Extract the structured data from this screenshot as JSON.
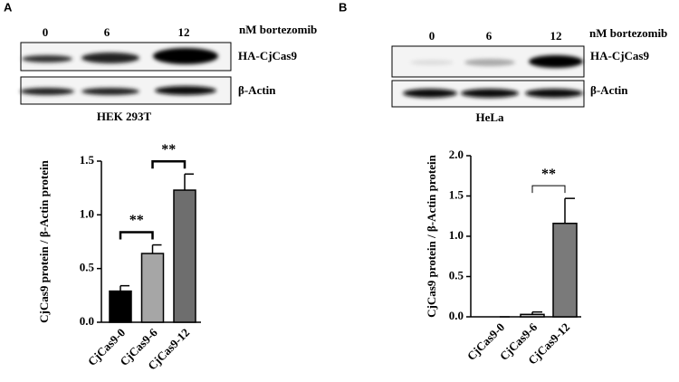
{
  "panels": [
    {
      "label": "A",
      "lanes": [
        "0",
        "6",
        "12"
      ],
      "unit": "nM bortezomib",
      "blots": [
        "HA-CjCas9",
        "β-Actin"
      ],
      "cell": "HEK 293T"
    },
    {
      "label": "B",
      "lanes": [
        "0",
        "6",
        "12"
      ],
      "unit": "nM bortezomib",
      "blots": [
        "HA-CjCas9",
        "β-Actin"
      ],
      "cell": "HeLa"
    }
  ],
  "chart_data": [
    {
      "type": "bar",
      "ylabel": "CjCas9 protein / β-Actin protein",
      "categories": [
        "CjCas9-0",
        "CjCas9-6",
        "CjCas9-12"
      ],
      "values": [
        0.29,
        0.64,
        1.23
      ],
      "errors": [
        0.05,
        0.08,
        0.15
      ],
      "colors": [
        "#000000",
        "#a6a6a6",
        "#6e6e6e"
      ],
      "ylim": [
        0,
        1.5
      ],
      "yticks": [
        {
          "value": 0,
          "label": "0.0"
        },
        0.5,
        {
          "value": 1,
          "label": "1.0"
        },
        1.5
      ],
      "annotations": [
        {
          "text": "**",
          "between": [
            "CjCas9-0",
            "CjCas9-6"
          ]
        },
        {
          "text": "**",
          "between": [
            "CjCas9-6",
            "CjCas9-12"
          ]
        }
      ]
    },
    {
      "type": "bar",
      "ylabel": "CjCas9 protein / β-Actin protein",
      "categories": [
        "CjCas9-0",
        "CjCas9-6",
        "CjCas9-12"
      ],
      "values": [
        0,
        0.03,
        1.16
      ],
      "errors": [
        0,
        0.03,
        0.31
      ],
      "colors": [
        "#ffffff",
        "#c8c8c8",
        "#7a7a7a"
      ],
      "ylim": [
        0,
        2
      ],
      "yticks": [
        {
          "value": 0,
          "label": "0.0"
        },
        0.5,
        {
          "value": 1,
          "label": "1.0"
        },
        1.5,
        {
          "value": 2,
          "label": "2.0"
        }
      ],
      "annotations": [
        {
          "text": "**",
          "between": [
            "CjCas9-6",
            "CjCas9-12"
          ]
        }
      ]
    }
  ]
}
